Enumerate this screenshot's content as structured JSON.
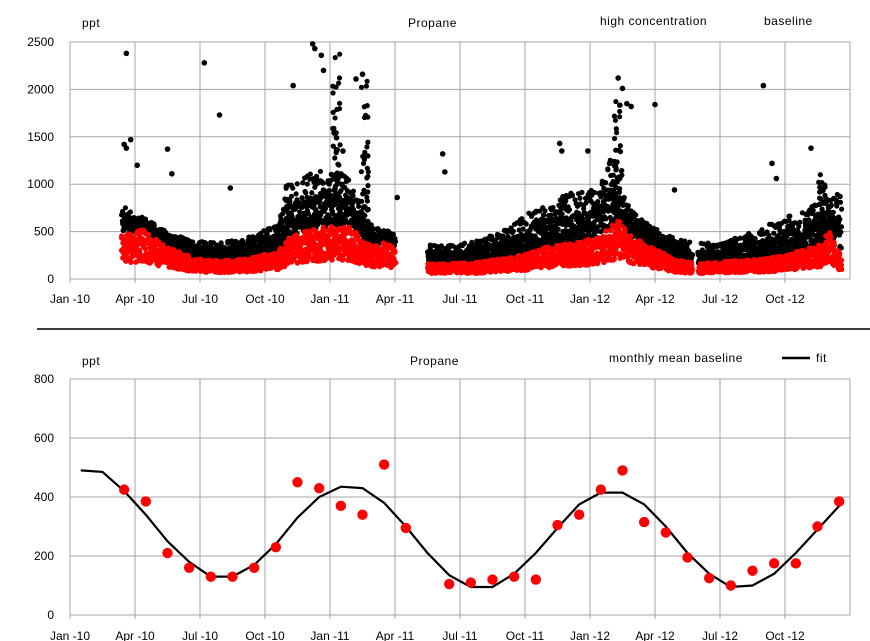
{
  "colors": {
    "high": "#000000",
    "baseline": "#ff0000",
    "monthly": "#ff0000",
    "fit": "#000000",
    "grid": "#a6a6a6"
  },
  "x_ticks": [
    "Jan -10",
    "Apr -10",
    "Jul -10",
    "Oct -10",
    "Jan -11",
    "Apr -11",
    "Jul -11",
    "Oct -11",
    "Jan -12",
    "Apr -12",
    "Jul -12",
    "Oct -12"
  ],
  "chart_data": [
    {
      "type": "scatter",
      "title": "Propane",
      "ylabel": "ppt",
      "xlim": [
        0,
        36
      ],
      "ylim": [
        0,
        2500
      ],
      "y_ticks": [
        0,
        500,
        1000,
        1500,
        2000,
        2500
      ],
      "legend": [
        "high concentration",
        "baseline"
      ],
      "legend_position": "top-right",
      "grid": true,
      "series": [
        {
          "name": "high concentration",
          "envelope": [
            [
              2.4,
              780
            ],
            [
              3.0,
              700
            ],
            [
              3.5,
              640
            ],
            [
              4.0,
              560
            ],
            [
              4.5,
              500
            ],
            [
              5.0,
              450
            ],
            [
              5.5,
              420
            ],
            [
              6.0,
              400
            ],
            [
              6.5,
              390
            ],
            [
              7.0,
              395
            ],
            [
              7.5,
              410
            ],
            [
              8.0,
              430
            ],
            [
              8.5,
              460
            ],
            [
              9.0,
              520
            ],
            [
              9.6,
              600
            ],
            [
              10.0,
              1000
            ],
            [
              11.0,
              1100
            ],
            [
              12.0,
              1200
            ],
            [
              13.0,
              1050
            ],
            [
              13.5,
              700
            ],
            [
              14.0,
              550
            ],
            [
              14.5,
              520
            ],
            [
              15.5,
              450
            ],
            [
              16.0,
              400
            ],
            [
              17.0,
              350
            ],
            [
              18.0,
              380
            ],
            [
              19.0,
              420
            ],
            [
              20.0,
              500
            ],
            [
              21.0,
              680
            ],
            [
              22.0,
              800
            ],
            [
              23.0,
              900
            ],
            [
              24.0,
              950
            ],
            [
              24.5,
              1000
            ],
            [
              25.0,
              1350
            ],
            [
              25.5,
              900
            ],
            [
              26.0,
              700
            ],
            [
              27.0,
              550
            ],
            [
              28.0,
              420
            ],
            [
              29.0,
              380
            ],
            [
              30.0,
              380
            ],
            [
              31.0,
              450
            ],
            [
              32.0,
              550
            ],
            [
              33.0,
              650
            ],
            [
              34.0,
              750
            ],
            [
              35.0,
              900
            ],
            [
              35.6,
              900
            ]
          ],
          "outliers": [
            [
              2.6,
              2380
            ],
            [
              2.5,
              1420
            ],
            [
              2.6,
              1380
            ],
            [
              2.8,
              1470
            ],
            [
              3.1,
              1200
            ],
            [
              4.5,
              1370
            ],
            [
              4.7,
              1110
            ],
            [
              6.2,
              2280
            ],
            [
              6.9,
              1730
            ],
            [
              7.4,
              960
            ],
            [
              10.3,
              2040
            ],
            [
              11.2,
              2480
            ],
            [
              11.3,
              2430
            ],
            [
              11.6,
              2360
            ],
            [
              11.7,
              2200
            ],
            [
              12.3,
              1490
            ],
            [
              12.6,
              1350
            ],
            [
              13.2,
              2110
            ],
            [
              13.5,
              2160
            ],
            [
              15.1,
              860
            ],
            [
              17.2,
              1320
            ],
            [
              17.3,
              1130
            ],
            [
              22.6,
              1430
            ],
            [
              22.7,
              1350
            ],
            [
              23.9,
              1350
            ],
            [
              24.9,
              1220
            ],
            [
              25.3,
              2120
            ],
            [
              25.5,
              2010
            ],
            [
              25.7,
              1850
            ],
            [
              25.9,
              1820
            ],
            [
              27.0,
              1840
            ],
            [
              27.9,
              940
            ],
            [
              32.0,
              2040
            ],
            [
              32.4,
              1220
            ],
            [
              32.6,
              1060
            ],
            [
              34.2,
              1380
            ]
          ],
          "spikes": [
            [
              12.3,
              2400
            ],
            [
              13.6,
              2100
            ],
            [
              25.3,
              1900
            ],
            [
              34.7,
              1100
            ]
          ],
          "gaps": [
            [
              15.0,
              16.5
            ],
            [
              28.7,
              29.0
            ]
          ],
          "values_note": "thousands of dense measurements; only outliers and the typical upper envelope are listed"
        },
        {
          "name": "baseline",
          "envelope": [
            [
              2.4,
              480
            ],
            [
              3.0,
              500
            ],
            [
              3.4,
              520
            ],
            [
              4.0,
              420
            ],
            [
              4.5,
              330
            ],
            [
              5.0,
              290
            ],
            [
              5.5,
              240
            ],
            [
              6.0,
              210
            ],
            [
              6.5,
              200
            ],
            [
              7.0,
              190
            ],
            [
              7.5,
              200
            ],
            [
              8.0,
              210
            ],
            [
              8.5,
              230
            ],
            [
              9.0,
              260
            ],
            [
              9.6,
              280
            ],
            [
              10.0,
              420
            ],
            [
              11.0,
              520
            ],
            [
              12.0,
              560
            ],
            [
              13.0,
              550
            ],
            [
              13.5,
              380
            ],
            [
              14.0,
              360
            ],
            [
              14.5,
              380
            ],
            [
              15.0,
              330
            ],
            [
              16.5,
              160
            ],
            [
              17.0,
              160
            ],
            [
              18.0,
              170
            ],
            [
              19.0,
              180
            ],
            [
              20.0,
              220
            ],
            [
              21.0,
              260
            ],
            [
              22.0,
              340
            ],
            [
              23.0,
              380
            ],
            [
              24.0,
              420
            ],
            [
              24.5,
              470
            ],
            [
              25.0,
              560
            ],
            [
              25.3,
              620
            ],
            [
              26.0,
              440
            ],
            [
              27.0,
              320
            ],
            [
              28.0,
              200
            ],
            [
              29.0,
              160
            ],
            [
              30.0,
              180
            ],
            [
              31.0,
              200
            ],
            [
              32.0,
              210
            ],
            [
              33.0,
              250
            ],
            [
              34.0,
              320
            ],
            [
              34.8,
              370
            ],
            [
              35.0,
              540
            ],
            [
              35.6,
              220
            ]
          ]
        }
      ]
    },
    {
      "type": "line",
      "title": "Propane",
      "ylabel": "ppt",
      "xlim": [
        0,
        36
      ],
      "ylim": [
        0,
        800
      ],
      "y_ticks": [
        0,
        200,
        400,
        600,
        800
      ],
      "legend": [
        "monthly mean baseline",
        "fit"
      ],
      "legend_position": "top-right",
      "grid": true,
      "series": [
        {
          "name": "monthly mean baseline",
          "kind": "scatter",
          "x": [
            2.5,
            3.5,
            4.5,
            5.5,
            6.5,
            7.5,
            8.5,
            9.5,
            10.5,
            11.5,
            12.5,
            13.5,
            14.5,
            15.5,
            17.5,
            18.5,
            19.5,
            20.5,
            21.5,
            22.5,
            23.5,
            24.5,
            25.5,
            26.5,
            27.5,
            28.5,
            29.5,
            30.5,
            31.5,
            32.5,
            33.5,
            34.5,
            35.5
          ],
          "y": [
            425,
            385,
            210,
            160,
            130,
            130,
            160,
            230,
            450,
            430,
            370,
            340,
            510,
            295,
            105,
            110,
            120,
            130,
            120,
            305,
            340,
            425,
            490,
            315,
            280,
            195,
            125,
            100,
            150,
            175,
            175,
            300,
            385
          ]
        },
        {
          "name": "fit",
          "kind": "line",
          "x": [
            0.5,
            1.5,
            2.5,
            3.5,
            4.5,
            5.5,
            6.5,
            7.5,
            8.5,
            9.5,
            10.5,
            11.5,
            12.5,
            13.5,
            14.5,
            15.5,
            16.5,
            17.5,
            18.5,
            19.5,
            20.5,
            21.5,
            22.5,
            23.5,
            24.5,
            25.5,
            26.5,
            27.5,
            28.5,
            29.5,
            30.5,
            31.5,
            32.5,
            33.5,
            34.5,
            35.5
          ],
          "y": [
            490,
            485,
            420,
            340,
            250,
            180,
            130,
            130,
            170,
            240,
            330,
            400,
            435,
            430,
            380,
            300,
            210,
            135,
            95,
            95,
            140,
            210,
            295,
            375,
            415,
            415,
            375,
            300,
            210,
            140,
            95,
            100,
            140,
            210,
            290,
            370
          ]
        }
      ]
    }
  ]
}
